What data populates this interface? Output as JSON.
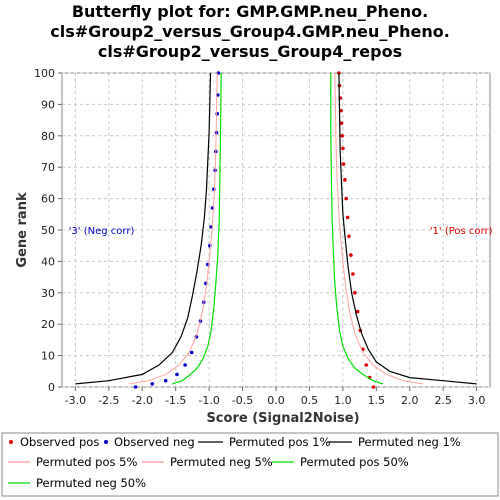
{
  "chart_data": {
    "type": "scatter",
    "title_lines": [
      "Butterfly plot for: GMP.GMP.neu_Pheno.",
      "cls#Group2_versus_Group4.GMP.neu_Pheno.",
      "cls#Group2_versus_Group4_repos"
    ],
    "xlabel": "Score (Signal2Noise)",
    "ylabel": "Gene rank",
    "xlim": [
      -3.2,
      3.2
    ],
    "ylim": [
      0,
      100
    ],
    "xticks": [
      "-3.0",
      "-2.5",
      "-2.0",
      "-1.5",
      "-1.0",
      "-0.5",
      "0.0",
      "0.5",
      "1.0",
      "1.5",
      "2.0",
      "2.5",
      "3.0"
    ],
    "yticks": [
      "0",
      "10",
      "20",
      "30",
      "40",
      "50",
      "60",
      "70",
      "80",
      "90",
      "100"
    ],
    "grid": true,
    "annotations": [
      {
        "text": "'3' (Neg corr)",
        "x": -3.1,
        "y": 50,
        "color": "#0000cc"
      },
      {
        "text": "'1' (Pos corr)",
        "x": 2.3,
        "y": 50,
        "color": "#dd0000"
      }
    ],
    "series": [
      {
        "name": "Observed pos",
        "kind": "points",
        "color": "#dd0000",
        "x": [
          1.46,
          1.4,
          1.35,
          1.3,
          1.26,
          1.22,
          1.18,
          1.15,
          1.12,
          1.09,
          1.07,
          1.05,
          1.03,
          1.01,
          1.0,
          0.99,
          0.98,
          0.97,
          0.96,
          0.95,
          0.94
        ],
        "y": [
          0,
          3,
          7,
          12,
          18,
          24,
          30,
          36,
          42,
          48,
          54,
          60,
          66,
          71,
          76,
          80,
          84,
          88,
          92,
          96,
          100
        ]
      },
      {
        "name": "Observed neg",
        "kind": "points",
        "color": "#0000cc",
        "x": [
          -2.1,
          -1.85,
          -1.65,
          -1.48,
          -1.36,
          -1.26,
          -1.19,
          -1.13,
          -1.08,
          -1.05,
          -1.02,
          -0.99,
          -0.97,
          -0.95,
          -0.93,
          -0.91,
          -0.9,
          -0.89,
          -0.88,
          -0.87,
          -0.86
        ],
        "y": [
          0,
          1,
          2,
          4,
          7,
          11,
          16,
          21,
          27,
          33,
          39,
          45,
          51,
          57,
          63,
          69,
          75,
          81,
          87,
          93,
          100
        ]
      },
      {
        "name": "Permuted pos 1%",
        "kind": "line",
        "color": "#000000",
        "x": [
          3.0,
          2.5,
          2.0,
          1.7,
          1.5,
          1.38,
          1.28,
          1.2,
          1.13,
          1.08,
          1.04,
          1.0,
          0.98,
          0.96,
          0.95,
          0.94
        ],
        "y": [
          1,
          2,
          3,
          5,
          8,
          12,
          17,
          23,
          30,
          38,
          46,
          55,
          65,
          75,
          88,
          100
        ]
      },
      {
        "name": "Permuted neg 1%",
        "kind": "line",
        "color": "#000000",
        "x": [
          -3.0,
          -2.5,
          -2.0,
          -1.75,
          -1.55,
          -1.42,
          -1.32,
          -1.25,
          -1.18,
          -1.12,
          -1.07,
          -1.04,
          -1.02,
          -1.0,
          -0.99,
          -0.98
        ],
        "y": [
          1,
          2,
          4,
          7,
          11,
          16,
          22,
          29,
          37,
          45,
          54,
          63,
          72,
          81,
          90,
          100
        ]
      },
      {
        "name": "Permuted pos 5%",
        "kind": "line",
        "color": "#ff9999",
        "x": [
          2.2,
          1.9,
          1.65,
          1.45,
          1.3,
          1.18,
          1.1,
          1.04,
          0.99,
          0.95,
          0.92,
          0.9,
          0.89,
          0.88
        ],
        "y": [
          1,
          2,
          4,
          7,
          11,
          17,
          24,
          32,
          42,
          52,
          63,
          75,
          88,
          100
        ]
      },
      {
        "name": "Permuted neg 5%",
        "kind": "line",
        "color": "#ff9999",
        "x": [
          -2.2,
          -1.9,
          -1.65,
          -1.45,
          -1.3,
          -1.18,
          -1.1,
          -1.04,
          -0.99,
          -0.95,
          -0.92,
          -0.9,
          -0.89,
          -0.88
        ],
        "y": [
          1,
          2,
          4,
          7,
          11,
          17,
          24,
          32,
          42,
          52,
          63,
          75,
          88,
          100
        ]
      },
      {
        "name": "Permuted pos 50%",
        "kind": "line",
        "color": "#00dd00",
        "x": [
          1.6,
          1.45,
          1.3,
          1.18,
          1.08,
          1.0,
          0.95,
          0.91,
          0.88,
          0.86,
          0.84,
          0.83,
          0.82,
          0.82
        ],
        "y": [
          1,
          2,
          4,
          6,
          9,
          13,
          18,
          25,
          33,
          42,
          53,
          65,
          80,
          100
        ]
      },
      {
        "name": "Permuted neg 50%",
        "kind": "line",
        "color": "#00dd00",
        "x": [
          -1.55,
          -1.4,
          -1.28,
          -1.18,
          -1.09,
          -1.02,
          -0.97,
          -0.93,
          -0.9,
          -0.87,
          -0.85,
          -0.84,
          -0.83,
          -0.82
        ],
        "y": [
          1,
          2,
          4,
          6,
          9,
          13,
          18,
          25,
          33,
          42,
          53,
          65,
          80,
          100
        ]
      }
    ]
  }
}
